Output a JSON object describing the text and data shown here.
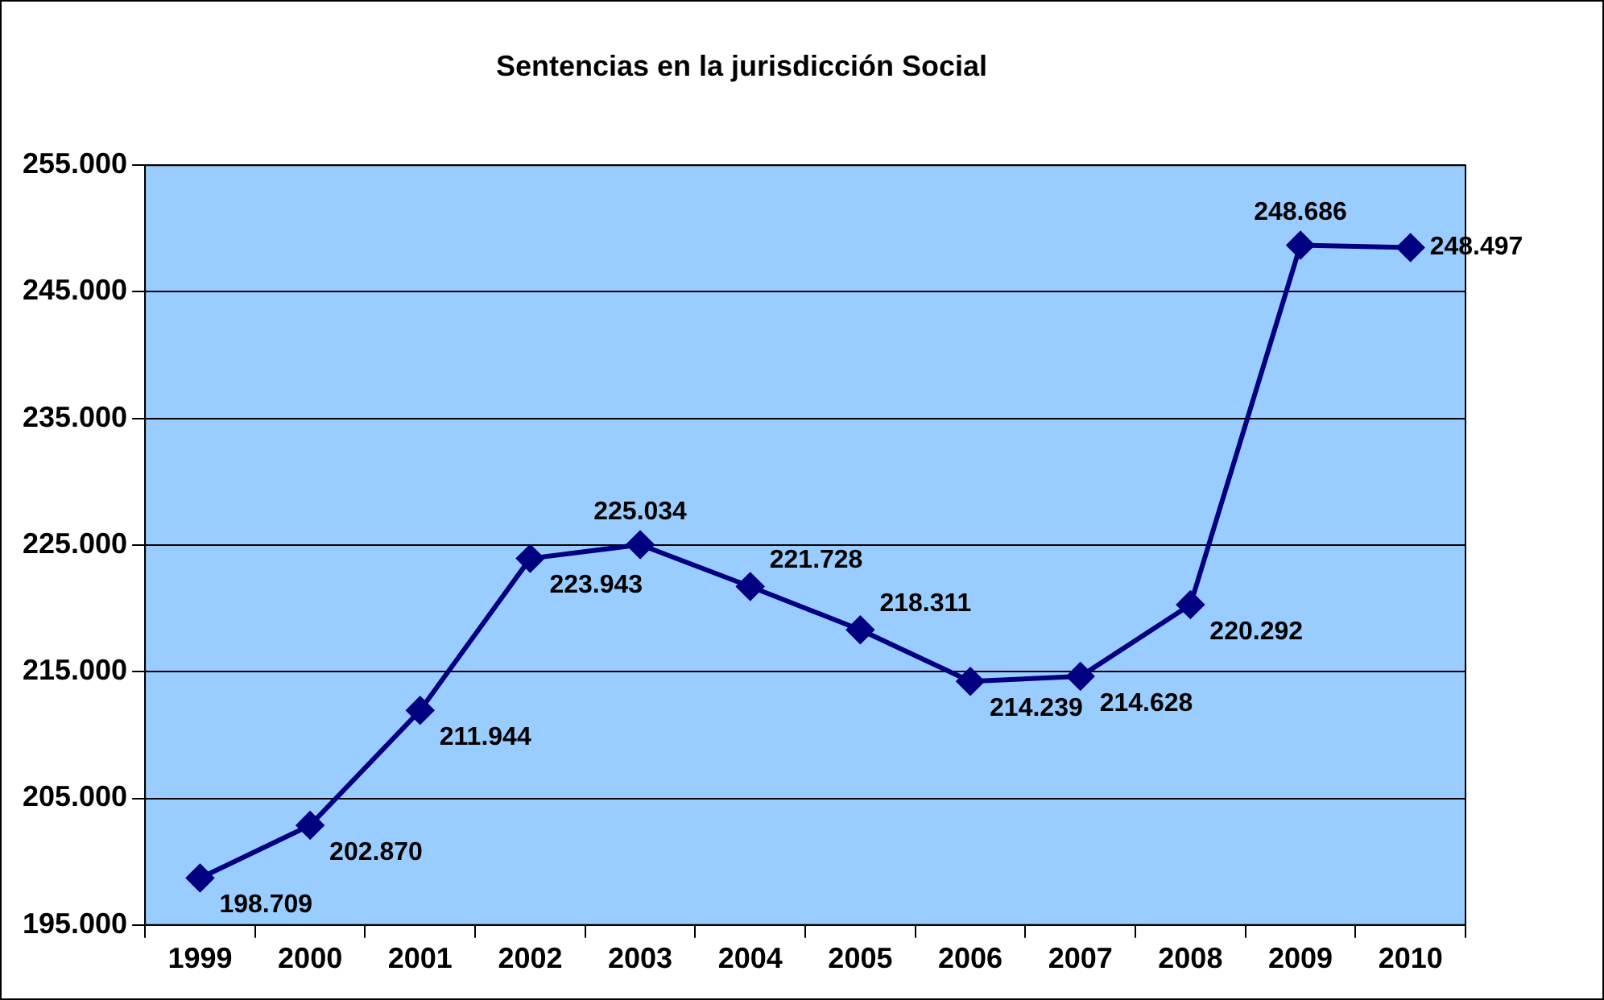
{
  "chart_data": {
    "type": "line",
    "title": "Sentencias en la jurisdicción Social",
    "categories": [
      "1999",
      "2000",
      "2001",
      "2002",
      "2003",
      "2004",
      "2005",
      "2006",
      "2007",
      "2008",
      "2009",
      "2010"
    ],
    "series": [
      {
        "color": "#000080",
        "values": [
          198709,
          202870,
          211944,
          223943,
          225034,
          221728,
          218311,
          214239,
          214628,
          220292,
          248686,
          248497
        ],
        "value_labels": [
          "198.709",
          "202.870",
          "211.944",
          "223.943",
          "225.034",
          "221.728",
          "218.311",
          "214.239",
          "214.628",
          "220.292",
          "248.686",
          "248.497"
        ]
      }
    ],
    "ylim": [
      195000,
      255000
    ],
    "yticks": [
      {
        "value": 195000,
        "label": "195.000"
      },
      {
        "value": 205000,
        "label": "205.000"
      },
      {
        "value": 215000,
        "label": "215.000"
      },
      {
        "value": 225000,
        "label": "225.000"
      },
      {
        "value": 235000,
        "label": "235.000"
      },
      {
        "value": 245000,
        "label": "245.000"
      },
      {
        "value": 255000,
        "label": "255.000"
      }
    ],
    "grid": "y",
    "legend": false,
    "marker": "diamond",
    "line_style": "solid"
  }
}
